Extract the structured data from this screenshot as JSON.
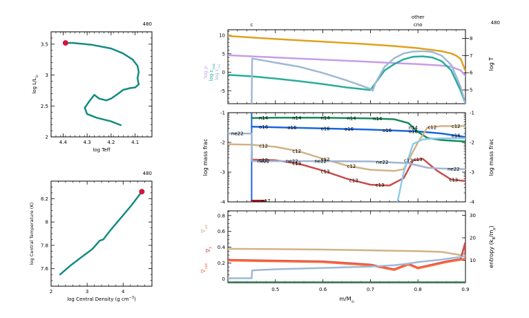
{
  "chart_data": [
    {
      "type": "line",
      "panel": "hr",
      "model_number": "480",
      "xlabel": "log Teff",
      "ylabel": "log L/L",
      "ylabel_sub": "⊙",
      "x_reversed": true,
      "xlim": [
        4.45,
        4.03
      ],
      "ylim": [
        2.0,
        3.7
      ],
      "xticks": [
        "4.4",
        "4.3",
        "4.2",
        "4.1"
      ],
      "yticks": [
        "2",
        "2.5",
        "3",
        "3.5"
      ],
      "line_color": "#138b82",
      "marker_color": "#d0163f",
      "series": [
        {
          "x": [
            4.16,
            4.2,
            4.26,
            4.3,
            4.31,
            4.29,
            4.27,
            4.25,
            4.22,
            4.2,
            4.17,
            4.15,
            4.12,
            4.1,
            4.085,
            4.09,
            4.085,
            4.09,
            4.11,
            4.15,
            4.2,
            4.28,
            4.36,
            4.39
          ],
          "y": [
            2.19,
            2.25,
            2.31,
            2.37,
            2.47,
            2.58,
            2.68,
            2.62,
            2.59,
            2.62,
            2.7,
            2.76,
            2.79,
            2.8,
            2.85,
            2.95,
            3.05,
            3.15,
            3.25,
            3.35,
            3.43,
            3.49,
            3.52,
            3.52
          ]
        }
      ],
      "current_point": {
        "x": 4.39,
        "y": 3.52
      }
    },
    {
      "type": "line",
      "panel": "central",
      "model_number": "480",
      "xlabel": "log Central Density (g cm",
      "xlabel_sup": "−3",
      "ylabel": "log Central Temperature (K)",
      "xlim": [
        2.0,
        4.8
      ],
      "ylim": [
        7.45,
        8.35
      ],
      "xticks": [
        "2",
        "3",
        "4"
      ],
      "yticks": [
        "7.6",
        "7.8",
        "8",
        "8.2"
      ],
      "line_color": "#138b82",
      "marker_color": "#d0163f",
      "series": [
        {
          "x": [
            2.25,
            2.55,
            2.85,
            3.15,
            3.35,
            3.45,
            3.65,
            3.95,
            4.25,
            4.52
          ],
          "y": [
            7.55,
            7.63,
            7.7,
            7.77,
            7.84,
            7.85,
            7.93,
            8.04,
            8.15,
            8.26
          ]
        }
      ],
      "current_point": {
        "x": 4.52,
        "y": 8.26
      }
    },
    {
      "type": "line",
      "panel": "structure",
      "model_number": "480",
      "top_labels": [
        {
          "text": "c",
          "x": 0.45
        },
        {
          "text": "other",
          "x": 0.8,
          "row": 0
        },
        {
          "text": "cno",
          "x": 0.8,
          "row": 1
        }
      ],
      "xlim": [
        0.4,
        0.9
      ],
      "ylim_left": [
        -8.5,
        11.5
      ],
      "ylim_right": [
        4.2,
        8.5
      ],
      "yticks_left": [
        "-5",
        "0",
        "5",
        "10"
      ],
      "yticks_right": [
        "5",
        "6",
        "7",
        "8"
      ],
      "ylabel_left": [
        "log ρ",
        "log ε",
        "log ε"
      ],
      "ylabel_left_subs": [
        "",
        "nuc",
        "nu"
      ],
      "ylabel_right": "log T",
      "colors": {
        "rho": "#c79ce8",
        "eps_nuc": "#26ad9a",
        "eps_nu": "#9fb8d5",
        "T": "#e2a01c"
      },
      "series": [
        {
          "name": "log T",
          "axis": "right",
          "color": "#e2a01c",
          "x": [
            0.4,
            0.45,
            0.5,
            0.55,
            0.6,
            0.65,
            0.7,
            0.75,
            0.8,
            0.85,
            0.87,
            0.88,
            0.89,
            0.9
          ],
          "y": [
            8.14,
            8.05,
            7.96,
            7.88,
            7.81,
            7.73,
            7.65,
            7.55,
            7.43,
            7.25,
            7.12,
            7.0,
            6.8,
            6.1
          ]
        },
        {
          "name": "log ρ",
          "axis": "left",
          "color": "#c79ce8",
          "x": [
            0.4,
            0.45,
            0.5,
            0.55,
            0.6,
            0.65,
            0.7,
            0.75,
            0.8,
            0.85,
            0.87,
            0.89,
            0.9
          ],
          "y": [
            4.6,
            4.3,
            4.0,
            3.7,
            3.4,
            3.1,
            2.8,
            2.5,
            2.2,
            1.8,
            1.5,
            0.5,
            -1.0
          ]
        },
        {
          "name": "log ε nuc",
          "axis": "left",
          "color": "#26ad9a",
          "x": [
            0.4,
            0.45,
            0.5,
            0.55,
            0.6,
            0.65,
            0.7,
            0.71,
            0.73,
            0.75,
            0.77,
            0.79,
            0.81,
            0.83,
            0.85,
            0.87,
            0.89,
            0.9
          ],
          "y": [
            -0.7,
            -1.1,
            -1.7,
            -2.4,
            -3.2,
            -4.1,
            -4.8,
            -3.0,
            0.5,
            2.2,
            3.5,
            4.2,
            4.3,
            4.0,
            3.0,
            0.5,
            -5.0,
            -8.5
          ]
        },
        {
          "name": "log ε nu",
          "axis": "left",
          "color": "#9fb8d5",
          "x": [
            0.45,
            0.451,
            0.47,
            0.5,
            0.55,
            0.6,
            0.65,
            0.7,
            0.705,
            0.71,
            0.73,
            0.75,
            0.77,
            0.79,
            0.81,
            0.83,
            0.85,
            0.87,
            0.89,
            0.9
          ],
          "y": [
            -8.5,
            3.7,
            3.3,
            2.6,
            1.5,
            -0.2,
            -2.2,
            -4.5,
            -5.0,
            -3.0,
            1.5,
            3.8,
            5.1,
            5.6,
            5.7,
            5.5,
            4.5,
            2.0,
            -4.0,
            -8.5
          ]
        }
      ]
    },
    {
      "type": "line",
      "panel": "abundances",
      "ylabel_left": "log mass frac",
      "ylabel_right": "log mass frac",
      "xlim": [
        0.4,
        0.9
      ],
      "ylim": [
        -4.0,
        -1.0
      ],
      "yticks": [
        "-4",
        "-3",
        "-2",
        "-1"
      ],
      "series": [
        {
          "name": "o16",
          "color": "#1a64e0",
          "x": [
            0.45,
            0.5,
            0.6,
            0.7,
            0.8,
            0.85,
            0.9
          ],
          "y": [
            -1.47,
            -1.49,
            -1.53,
            -1.57,
            -1.63,
            -1.7,
            -1.82
          ]
        },
        {
          "name": "n14",
          "color": "#138b5a",
          "x": [
            0.45,
            0.5,
            0.6,
            0.7,
            0.75,
            0.78,
            0.8,
            0.82,
            0.85,
            0.88,
            0.9
          ],
          "y": [
            -1.18,
            -1.17,
            -1.17,
            -1.19,
            -1.22,
            -1.35,
            -1.65,
            -1.85,
            -1.92,
            -1.95,
            -1.97
          ]
        },
        {
          "name": "c12",
          "color": "#d1b286",
          "x": [
            0.4,
            0.45,
            0.5,
            0.55,
            0.6,
            0.65,
            0.7,
            0.75,
            0.77,
            0.8,
            0.82,
            0.85,
            0.9
          ],
          "y": [
            -2.06,
            -2.08,
            -2.15,
            -2.3,
            -2.55,
            -2.78,
            -2.92,
            -2.96,
            -2.9,
            -2.0,
            -1.5,
            -1.45,
            -1.45
          ]
        },
        {
          "name": "c13",
          "color": "#c94c4c",
          "x": [
            0.45,
            0.5,
            0.55,
            0.6,
            0.65,
            0.7,
            0.74,
            0.77,
            0.79,
            0.81,
            0.84,
            0.87,
            0.9
          ],
          "y": [
            -2.58,
            -2.6,
            -2.72,
            -2.95,
            -3.22,
            -3.42,
            -3.45,
            -3.2,
            -2.6,
            -2.55,
            -2.95,
            -3.25,
            -3.3
          ]
        },
        {
          "name": "ne22",
          "color": "#9fb5d0",
          "x": [
            0.4,
            0.45,
            0.451,
            0.5,
            0.6,
            0.7,
            0.78,
            0.82,
            0.85,
            0.9
          ],
          "y": [
            -1.7,
            -1.7,
            -2.63,
            -2.63,
            -2.63,
            -2.64,
            -2.7,
            -2.85,
            -2.88,
            -2.9
          ]
        },
        {
          "name": "o17",
          "color": "#9b1c1c",
          "x": [
            0.45,
            0.46,
            0.47,
            0.48
          ],
          "y": [
            -3.96,
            -3.96,
            -3.96,
            -3.97
          ]
        },
        {
          "name": "",
          "color": "#8dcbee",
          "x": [
            0.757,
            0.77,
            0.79,
            0.81,
            0.83,
            0.86,
            0.9
          ],
          "y": [
            -4.0,
            -3.0,
            -2.05,
            -1.9,
            -1.87,
            -1.86,
            -1.86
          ]
        }
      ],
      "labels": [
        {
          "text": "n14",
          "series": "n14",
          "x": 0.475
        },
        {
          "text": "n14",
          "series": "n14",
          "x": 0.545
        },
        {
          "text": "n14",
          "series": "n14",
          "x": 0.605
        },
        {
          "text": "n14",
          "series": "n14",
          "x": 0.66
        },
        {
          "text": "n14",
          "series": "n14",
          "x": 0.715
        },
        {
          "text": "n14",
          "series": "n14",
          "x": 0.79
        },
        {
          "text": "o16",
          "series": "o16",
          "x": 0.475
        },
        {
          "text": "o16",
          "series": "o16",
          "x": 0.535
        },
        {
          "text": "o16",
          "series": "o16",
          "x": 0.605
        },
        {
          "text": "o16",
          "series": "o16",
          "x": 0.655
        },
        {
          "text": "o16",
          "series": "o16",
          "x": 0.735
        },
        {
          "text": "o16",
          "series": "o16",
          "x": 0.79
        },
        {
          "text": "o16",
          "series": "o16",
          "x": 0.88
        },
        {
          "text": "c12",
          "series": "c12",
          "x": 0.475
        },
        {
          "text": "c12",
          "series": "c12",
          "x": 0.545
        },
        {
          "text": "c12",
          "series": "c12",
          "x": 0.605
        },
        {
          "text": "c12",
          "series": "c12",
          "x": 0.66
        },
        {
          "text": "c12",
          "series": "c12",
          "x": 0.78
        },
        {
          "text": "c12",
          "series": "c12",
          "x": 0.83
        },
        {
          "text": "c12",
          "series": "c12",
          "x": 0.88
        },
        {
          "text": "c13",
          "series": "c13",
          "x": 0.475
        },
        {
          "text": "c13",
          "series": "c13",
          "x": 0.545
        },
        {
          "text": "c13",
          "series": "c13",
          "x": 0.605
        },
        {
          "text": "c13",
          "series": "c13",
          "x": 0.665
        },
        {
          "text": "c13",
          "series": "c13",
          "x": 0.72
        },
        {
          "text": "c13",
          "series": "c13",
          "x": 0.8
        },
        {
          "text": "c13",
          "series": "c13",
          "x": 0.875
        },
        {
          "text": "ne22",
          "series": "ne22",
          "x": 0.42
        },
        {
          "text": "ne22",
          "series": "ne22",
          "x": 0.475
        },
        {
          "text": "ne22",
          "series": "ne22",
          "x": 0.535
        },
        {
          "text": "ne22",
          "series": "ne22",
          "x": 0.595
        },
        {
          "text": "ne22",
          "series": "ne22",
          "x": 0.725
        },
        {
          "text": "ne22",
          "series": "ne22",
          "x": 0.875
        },
        {
          "text": "o17",
          "series": "o17",
          "x": 0.48
        }
      ]
    },
    {
      "type": "line",
      "panel": "gradients",
      "xlabel": "m/M",
      "xlabel_sub": "⊙",
      "xlim": [
        0.4,
        0.9
      ],
      "xticks": [
        "0.5",
        "0.6",
        "0.7",
        "0.8",
        "0.9"
      ],
      "xtick_values": [
        0.5,
        0.6,
        0.7,
        0.8,
        0.9
      ],
      "ylim_left": [
        -0.05,
        0.86
      ],
      "ylim_right": [
        0,
        32
      ],
      "yticks_left": [
        "0",
        "0.2",
        "0.4",
        "0.6",
        "0.8"
      ],
      "yticks_right": [
        "10",
        "20",
        "30"
      ],
      "ylabel_left": [
        "∇",
        "∇",
        "∇"
      ],
      "ylabel_left_subs": [
        "ad",
        "T",
        "rad"
      ],
      "ylabel_right": "entropy (k",
      "ylabel_right_tail": "/m",
      "ylabel_right_subs": [
        "B",
        "p"
      ],
      "series": [
        {
          "name": "∇ad",
          "color": "#d1b286",
          "axis": "left",
          "x": [
            0.4,
            0.5,
            0.6,
            0.7,
            0.75,
            0.8,
            0.85,
            0.89,
            0.9
          ],
          "y": [
            0.38,
            0.375,
            0.37,
            0.36,
            0.355,
            0.35,
            0.34,
            0.3,
            0.33
          ]
        },
        {
          "name": "∇rad",
          "color": "#c94c4c",
          "axis": "left",
          "x": [
            0.4,
            0.5,
            0.6,
            0.7,
            0.75,
            0.78,
            0.8,
            0.83,
            0.86,
            0.89,
            0.899,
            0.9
          ],
          "y": [
            0.24,
            0.23,
            0.22,
            0.18,
            0.12,
            0.19,
            0.14,
            0.18,
            0.22,
            0.25,
            0.45,
            0.25
          ]
        },
        {
          "name": "∇T",
          "color": "#ff6a3c",
          "axis": "left",
          "x": [
            0.4,
            0.5,
            0.6,
            0.7,
            0.75,
            0.78,
            0.8,
            0.83,
            0.86,
            0.89,
            0.9
          ],
          "y": [
            0.23,
            0.22,
            0.21,
            0.17,
            0.11,
            0.18,
            0.13,
            0.17,
            0.21,
            0.24,
            0.26
          ]
        },
        {
          "name": "entropy",
          "color": "#9fb8d5",
          "axis": "right",
          "x": [
            0.4,
            0.45,
            0.451,
            0.5,
            0.6,
            0.7,
            0.75,
            0.78,
            0.8,
            0.85,
            0.89,
            0.9
          ],
          "y": [
            2.0,
            2.0,
            5.5,
            6.0,
            6.6,
            7.2,
            7.8,
            8.5,
            9.2,
            10.3,
            11.5,
            12.0
          ]
        },
        {
          "name": "",
          "color": "#2a7c4f",
          "axis": "left",
          "x": [
            0.4,
            0.9
          ],
          "y": [
            -0.045,
            -0.045
          ]
        }
      ]
    }
  ]
}
